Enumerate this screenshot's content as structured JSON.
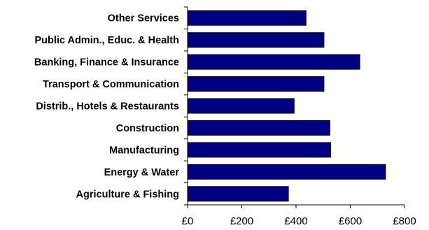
{
  "chart_data": {
    "type": "bar",
    "orientation": "horizontal",
    "categories": [
      "Other Services",
      "Public Admin., Educ. & Health",
      "Banking, Finance & Insurance",
      "Transport & Communication",
      "Distrib., Hotels & Restaurants",
      "Construction",
      "Manufacturing",
      "Energy & Water",
      "Agriculture & Fishing"
    ],
    "values": [
      437,
      503,
      635,
      503,
      393,
      525,
      528,
      730,
      372
    ],
    "xlim": [
      0,
      800
    ],
    "x_ticks": [
      0,
      200,
      400,
      600,
      800
    ],
    "x_tick_labels": [
      "£0",
      "£200",
      "£400",
      "£600",
      "£800"
    ],
    "title": "",
    "xlabel": "",
    "ylabel": "",
    "grid": false,
    "legend": "none",
    "bar_color": "#000080",
    "bar_edge_color": "#000000"
  }
}
